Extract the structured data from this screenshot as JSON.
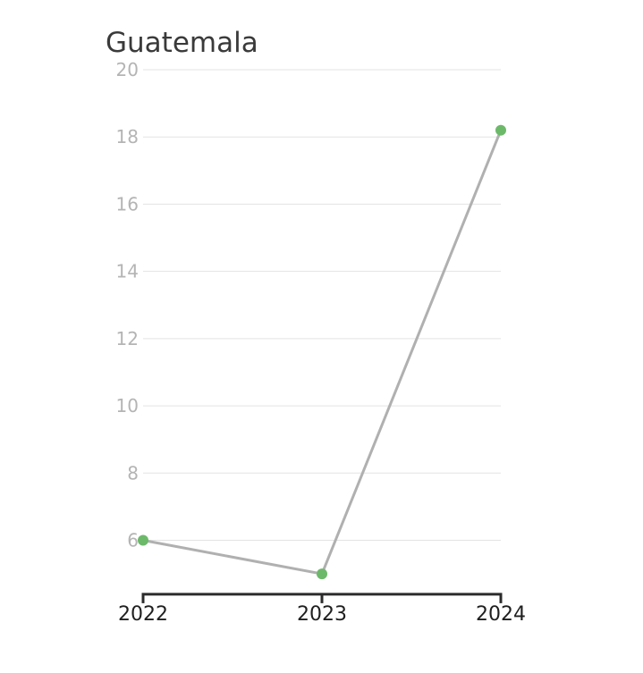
{
  "chart_data": {
    "type": "line",
    "title": "Guatemala",
    "x": [
      "2022",
      "2023",
      "2024"
    ],
    "series": [
      {
        "values": [
          6.0,
          5.0,
          18.2
        ]
      }
    ],
    "yticks": [
      "6",
      "8",
      "10",
      "12",
      "14",
      "16",
      "18",
      "20"
    ],
    "ylim": [
      4.5,
      20
    ],
    "grid": true,
    "colors": {
      "line": "#b0b0b0",
      "marker": "#6db96a"
    }
  }
}
